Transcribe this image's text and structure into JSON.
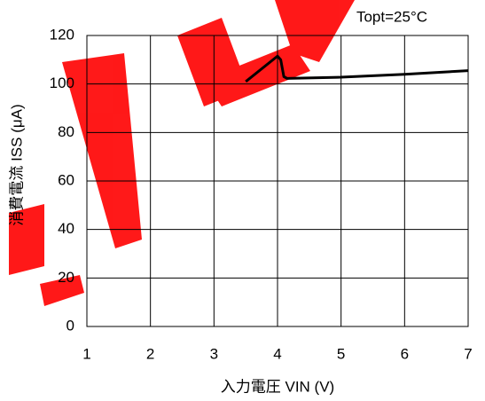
{
  "chart_data": {
    "type": "line",
    "x": [
      3.5,
      4.0,
      4.05,
      4.1,
      4.15,
      5,
      6,
      7
    ],
    "series": [
      {
        "name": null,
        "color": "#000000",
        "values": [
          101,
          111.5,
          110,
          103,
          102.3,
          102.8,
          104,
          105.5
        ]
      }
    ],
    "xlim": [
      1,
      7
    ],
    "xticks": [
      1,
      2,
      3,
      4,
      5,
      6,
      7
    ],
    "ylim": [
      0,
      120
    ],
    "yticks": [
      0,
      20,
      40,
      60,
      80,
      100,
      120
    ],
    "grid": true,
    "xlabel": "入力電圧 VIN (V)",
    "ylabel": "消費電流 ISS (μA)",
    "annotation": "Topt=25°C"
  }
}
